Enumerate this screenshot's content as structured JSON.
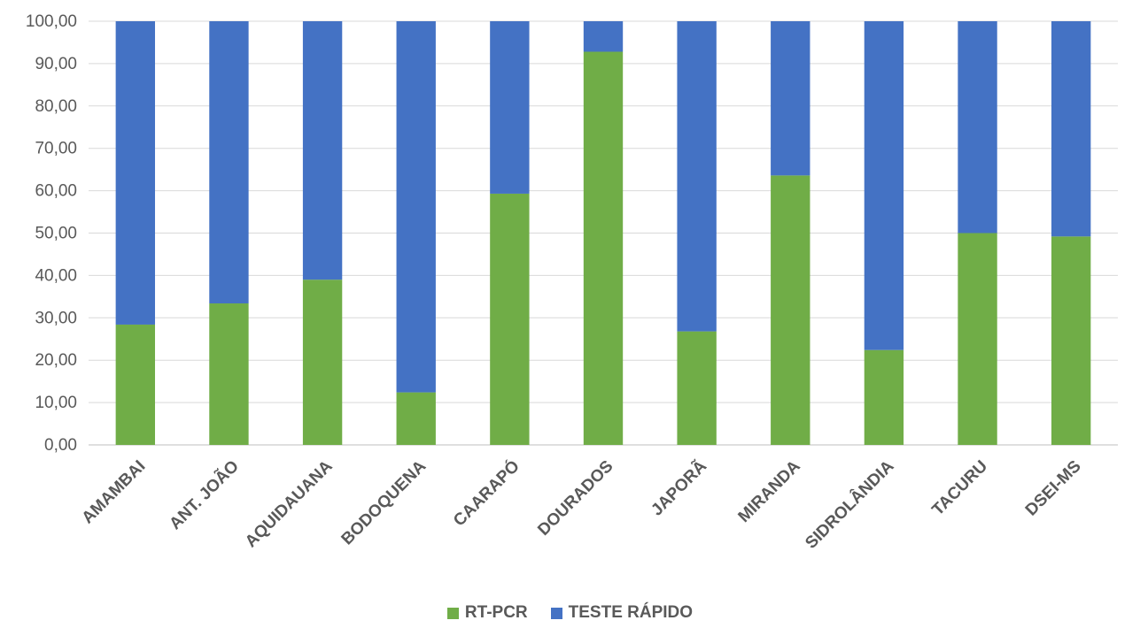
{
  "chart_data": {
    "type": "bar",
    "stacked": true,
    "categories": [
      "AMAMBAI",
      "ANT. JOÃO",
      "AQUIDAUANA",
      "BODOQUENA",
      "CAARAPÓ",
      "DOURADOS",
      "JAPORÃ",
      "MIRANDA",
      "SIDROLÂNDIA",
      "TACURU",
      "DSEI-MS"
    ],
    "series": [
      {
        "name": "RT-PCR",
        "color": "#70AD47",
        "values": [
          28.4,
          33.4,
          39.0,
          12.4,
          59.3,
          92.8,
          26.8,
          63.6,
          22.4,
          50.0,
          49.2
        ]
      },
      {
        "name": "TESTE RÁPIDO",
        "color": "#4472C4",
        "values": [
          71.6,
          66.6,
          61.0,
          87.6,
          40.7,
          7.2,
          73.2,
          36.4,
          77.6,
          50.0,
          50.8
        ]
      }
    ],
    "ylim": [
      0,
      100
    ],
    "yticks": [
      "0,00",
      "10,00",
      "20,00",
      "30,00",
      "40,00",
      "50,00",
      "60,00",
      "70,00",
      "80,00",
      "90,00",
      "100,00"
    ],
    "grid": true,
    "legend_position": "bottom",
    "title": "",
    "xlabel": "",
    "ylabel": ""
  }
}
